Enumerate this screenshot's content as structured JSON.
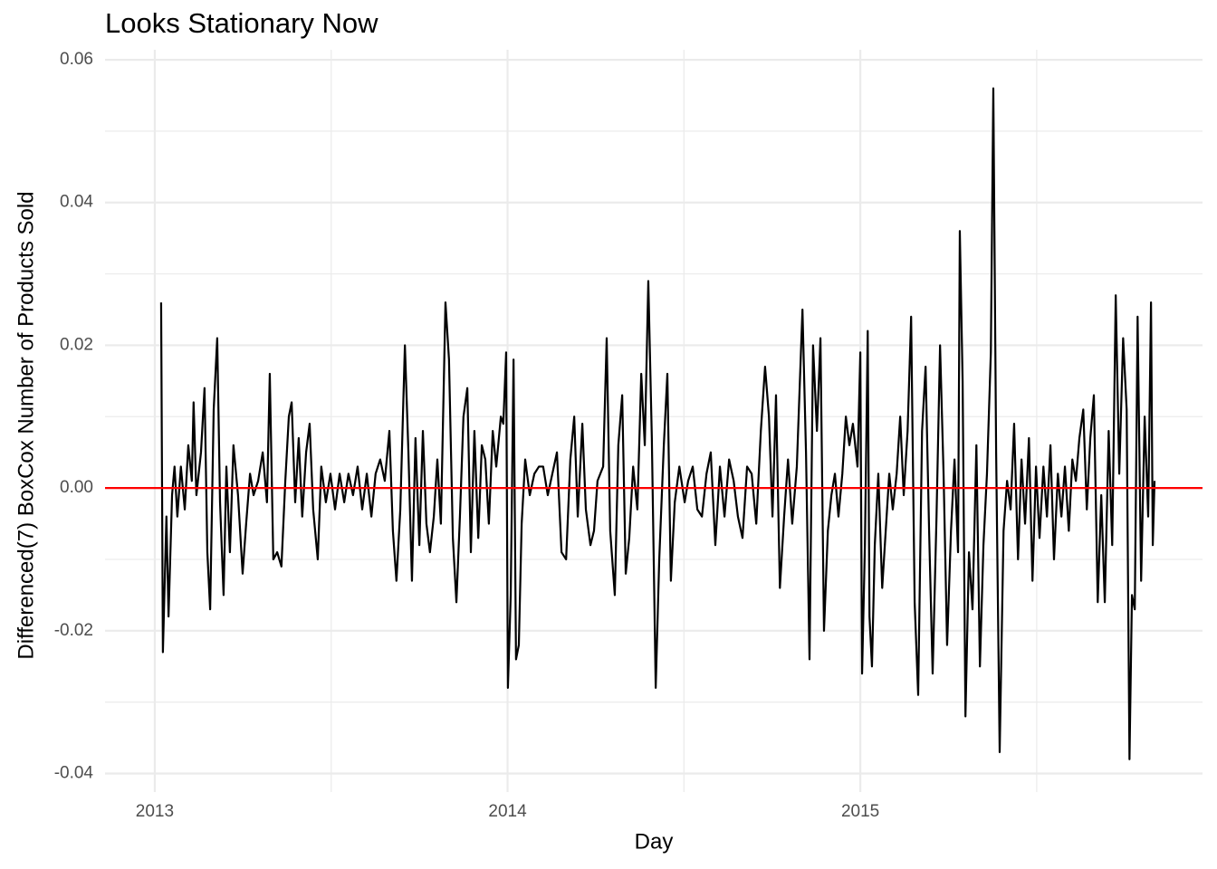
{
  "chart_data": {
    "type": "line",
    "title": "Looks Stationary Now",
    "x_label": "Day",
    "y_label": "Differenced(7) BoxCox Number of Products Sold",
    "xlim": [
      2012.859,
      2015.97
    ],
    "xticks": [
      2013,
      2014,
      2015
    ],
    "x_minor_ticks": [
      2013.5,
      2014.5,
      2015.5
    ],
    "ylim": [
      -0.0426,
      0.0614
    ],
    "yticks": [
      -0.04,
      -0.02,
      {
        "value": 0,
        "label": "0.00"
      },
      0.02,
      0.04,
      0.06
    ],
    "y_minor_ticks": [
      -0.03,
      -0.01,
      0.01,
      0.03,
      0.05
    ],
    "grid": true,
    "hline": 0,
    "hline_color": "#ff0000",
    "x": [
      2013.018,
      2013.023,
      2013.033,
      2013.039,
      2013.049,
      2013.056,
      2013.064,
      2013.074,
      2013.085,
      2013.095,
      2013.105,
      2013.11,
      2013.118,
      2013.131,
      2013.141,
      2013.149,
      2013.157,
      2013.167,
      2013.177,
      2013.185,
      2013.195,
      2013.203,
      2013.213,
      2013.223,
      2013.236,
      2013.249,
      2013.259,
      2013.27,
      2013.28,
      2013.293,
      2013.306,
      2013.318,
      2013.326,
      2013.336,
      2013.347,
      2013.359,
      2013.37,
      2013.38,
      2013.388,
      2013.398,
      2013.408,
      2013.418,
      2013.429,
      2013.439,
      2013.449,
      2013.462,
      2013.472,
      2013.485,
      2013.498,
      2013.511,
      2013.524,
      2013.537,
      2013.549,
      2013.562,
      2013.575,
      2013.588,
      2013.601,
      2013.614,
      2013.626,
      2013.639,
      2013.652,
      2013.665,
      2013.675,
      2013.685,
      2013.696,
      2013.709,
      2013.719,
      2013.729,
      2013.739,
      2013.75,
      2013.76,
      2013.77,
      2013.78,
      2013.791,
      2013.801,
      2013.811,
      2013.824,
      2013.834,
      2013.845,
      2013.855,
      2013.865,
      2013.875,
      2013.886,
      2013.896,
      2013.906,
      2013.917,
      2013.927,
      2013.937,
      2013.947,
      2013.958,
      2013.968,
      2013.981,
      2013.988,
      2013.996,
      2014.001,
      2014.009,
      2014.017,
      2014.024,
      2014.032,
      2014.04,
      2014.05,
      2014.063,
      2014.076,
      2014.089,
      2014.101,
      2014.114,
      2014.127,
      2014.14,
      2014.153,
      2014.166,
      2014.178,
      2014.189,
      2014.199,
      2014.212,
      2014.222,
      2014.235,
      2014.245,
      2014.255,
      2014.271,
      2014.281,
      2014.291,
      2014.304,
      2014.314,
      2014.325,
      2014.335,
      2014.345,
      2014.356,
      2014.368,
      2014.379,
      2014.389,
      2014.399,
      2014.409,
      2014.42,
      2014.43,
      2014.443,
      2014.453,
      2014.463,
      2014.474,
      2014.487,
      2014.502,
      2014.512,
      2014.525,
      2014.538,
      2014.551,
      2014.564,
      2014.576,
      2014.589,
      2014.602,
      2014.615,
      2014.628,
      2014.641,
      2014.653,
      2014.666,
      2014.679,
      2014.692,
      2014.705,
      2014.718,
      2014.73,
      2014.741,
      2014.751,
      2014.761,
      2014.772,
      2014.784,
      2014.795,
      2014.807,
      2014.82,
      2014.836,
      2014.846,
      2014.856,
      2014.866,
      2014.877,
      2014.887,
      2014.897,
      2014.908,
      2014.918,
      2014.928,
      2014.938,
      2014.949,
      2014.959,
      2014.969,
      2014.979,
      2014.992,
      2015.0,
      2015.005,
      2015.013,
      2015.021,
      2015.026,
      2015.033,
      2015.041,
      2015.051,
      2015.062,
      2015.072,
      2015.082,
      2015.092,
      2015.103,
      2015.113,
      2015.123,
      2015.134,
      2015.144,
      2015.154,
      2015.164,
      2015.175,
      2015.185,
      2015.195,
      2015.205,
      2015.216,
      2015.226,
      2015.236,
      2015.246,
      2015.257,
      2015.267,
      2015.277,
      2015.282,
      2015.29,
      2015.298,
      2015.308,
      2015.318,
      2015.329,
      2015.339,
      2015.349,
      2015.359,
      2015.37,
      2015.377,
      2015.385,
      2015.395,
      2015.406,
      2015.416,
      2015.426,
      2015.436,
      2015.447,
      2015.457,
      2015.467,
      2015.478,
      2015.488,
      2015.498,
      2015.508,
      2015.519,
      2015.529,
      2015.539,
      2015.549,
      2015.56,
      2015.57,
      2015.58,
      2015.591,
      2015.601,
      2015.611,
      2015.621,
      2015.632,
      2015.642,
      2015.652,
      2015.662,
      2015.673,
      2015.683,
      2015.693,
      2015.704,
      2015.714,
      2015.724,
      2015.734,
      2015.745,
      2015.755,
      2015.763,
      2015.77,
      2015.778,
      2015.786,
      2015.796,
      2015.806,
      2015.816,
      2015.824,
      2015.829,
      2015.834
    ],
    "series": [
      {
        "color": "#000000",
        "values": [
          0.026,
          -0.023,
          -0.004,
          -0.018,
          -0.001,
          0.003,
          -0.004,
          0.003,
          -0.003,
          0.006,
          0.001,
          0.012,
          -0.001,
          0.005,
          0.014,
          -0.009,
          -0.017,
          0.011,
          0.021,
          -0.002,
          -0.015,
          0.003,
          -0.009,
          0.006,
          -0.001,
          -0.012,
          -0.005,
          0.002,
          -0.001,
          0.001,
          0.005,
          -0.002,
          0.016,
          -0.01,
          -0.009,
          -0.011,
          0.001,
          0.01,
          0.012,
          -0.002,
          0.007,
          -0.004,
          0.005,
          0.009,
          -0.003,
          -0.01,
          0.003,
          -0.002,
          0.002,
          -0.003,
          0.002,
          -0.002,
          0.002,
          -0.001,
          0.003,
          -0.003,
          0.002,
          -0.004,
          0.002,
          0.004,
          0.001,
          0.008,
          -0.006,
          -0.013,
          -0.003,
          0.02,
          0.005,
          -0.013,
          0.007,
          -0.008,
          0.008,
          -0.005,
          -0.009,
          -0.004,
          0.004,
          -0.005,
          0.026,
          0.018,
          -0.007,
          -0.016,
          -0.004,
          0.01,
          0.014,
          -0.009,
          0.008,
          -0.007,
          0.006,
          0.004,
          -0.005,
          0.008,
          0.003,
          0.01,
          0.009,
          0.019,
          -0.028,
          -0.015,
          0.018,
          -0.024,
          -0.022,
          -0.005,
          0.004,
          -0.001,
          0.002,
          0.003,
          0.003,
          -0.001,
          0.002,
          0.005,
          -0.009,
          -0.01,
          0.004,
          0.01,
          -0.004,
          0.009,
          -0.003,
          -0.008,
          -0.006,
          0.001,
          0.003,
          0.021,
          -0.006,
          -0.015,
          0.006,
          0.013,
          -0.012,
          -0.007,
          0.003,
          -0.003,
          0.016,
          0.006,
          0.029,
          0.007,
          -0.028,
          -0.01,
          0.006,
          0.016,
          -0.013,
          -0.002,
          0.003,
          -0.002,
          0.001,
          0.003,
          -0.003,
          -0.004,
          0.002,
          0.005,
          -0.008,
          0.003,
          -0.004,
          0.004,
          0.001,
          -0.004,
          -0.007,
          0.003,
          0.002,
          -0.005,
          0.008,
          0.017,
          0.01,
          -0.004,
          0.013,
          -0.014,
          -0.004,
          0.004,
          -0.005,
          0.003,
          0.025,
          0.005,
          -0.024,
          0.02,
          0.008,
          0.021,
          -0.02,
          -0.006,
          -0.001,
          0.002,
          -0.004,
          0.002,
          0.01,
          0.006,
          0.009,
          0.003,
          0.019,
          -0.026,
          -0.008,
          0.022,
          -0.018,
          -0.025,
          -0.008,
          0.002,
          -0.014,
          -0.006,
          0.002,
          -0.003,
          0.002,
          0.01,
          -0.001,
          0.008,
          0.024,
          -0.016,
          -0.029,
          0.008,
          0.017,
          -0.006,
          -0.026,
          -0.004,
          0.02,
          0.002,
          -0.022,
          -0.006,
          0.004,
          -0.009,
          0.036,
          0.015,
          -0.032,
          -0.009,
          -0.017,
          0.006,
          -0.025,
          -0.008,
          0.002,
          0.019,
          0.056,
          0.005,
          -0.037,
          -0.006,
          0.001,
          -0.003,
          0.009,
          -0.01,
          0.004,
          -0.005,
          0.007,
          -0.013,
          0.003,
          -0.007,
          0.003,
          -0.004,
          0.006,
          -0.01,
          0.002,
          -0.004,
          0.003,
          -0.006,
          0.004,
          0.001,
          0.007,
          0.011,
          -0.003,
          0.007,
          0.013,
          -0.016,
          -0.001,
          -0.016,
          0.008,
          -0.008,
          0.027,
          0.002,
          0.021,
          0.011,
          -0.038,
          -0.015,
          -0.017,
          0.024,
          -0.013,
          0.01,
          -0.004,
          0.026,
          -0.008,
          0.001
        ]
      }
    ]
  }
}
